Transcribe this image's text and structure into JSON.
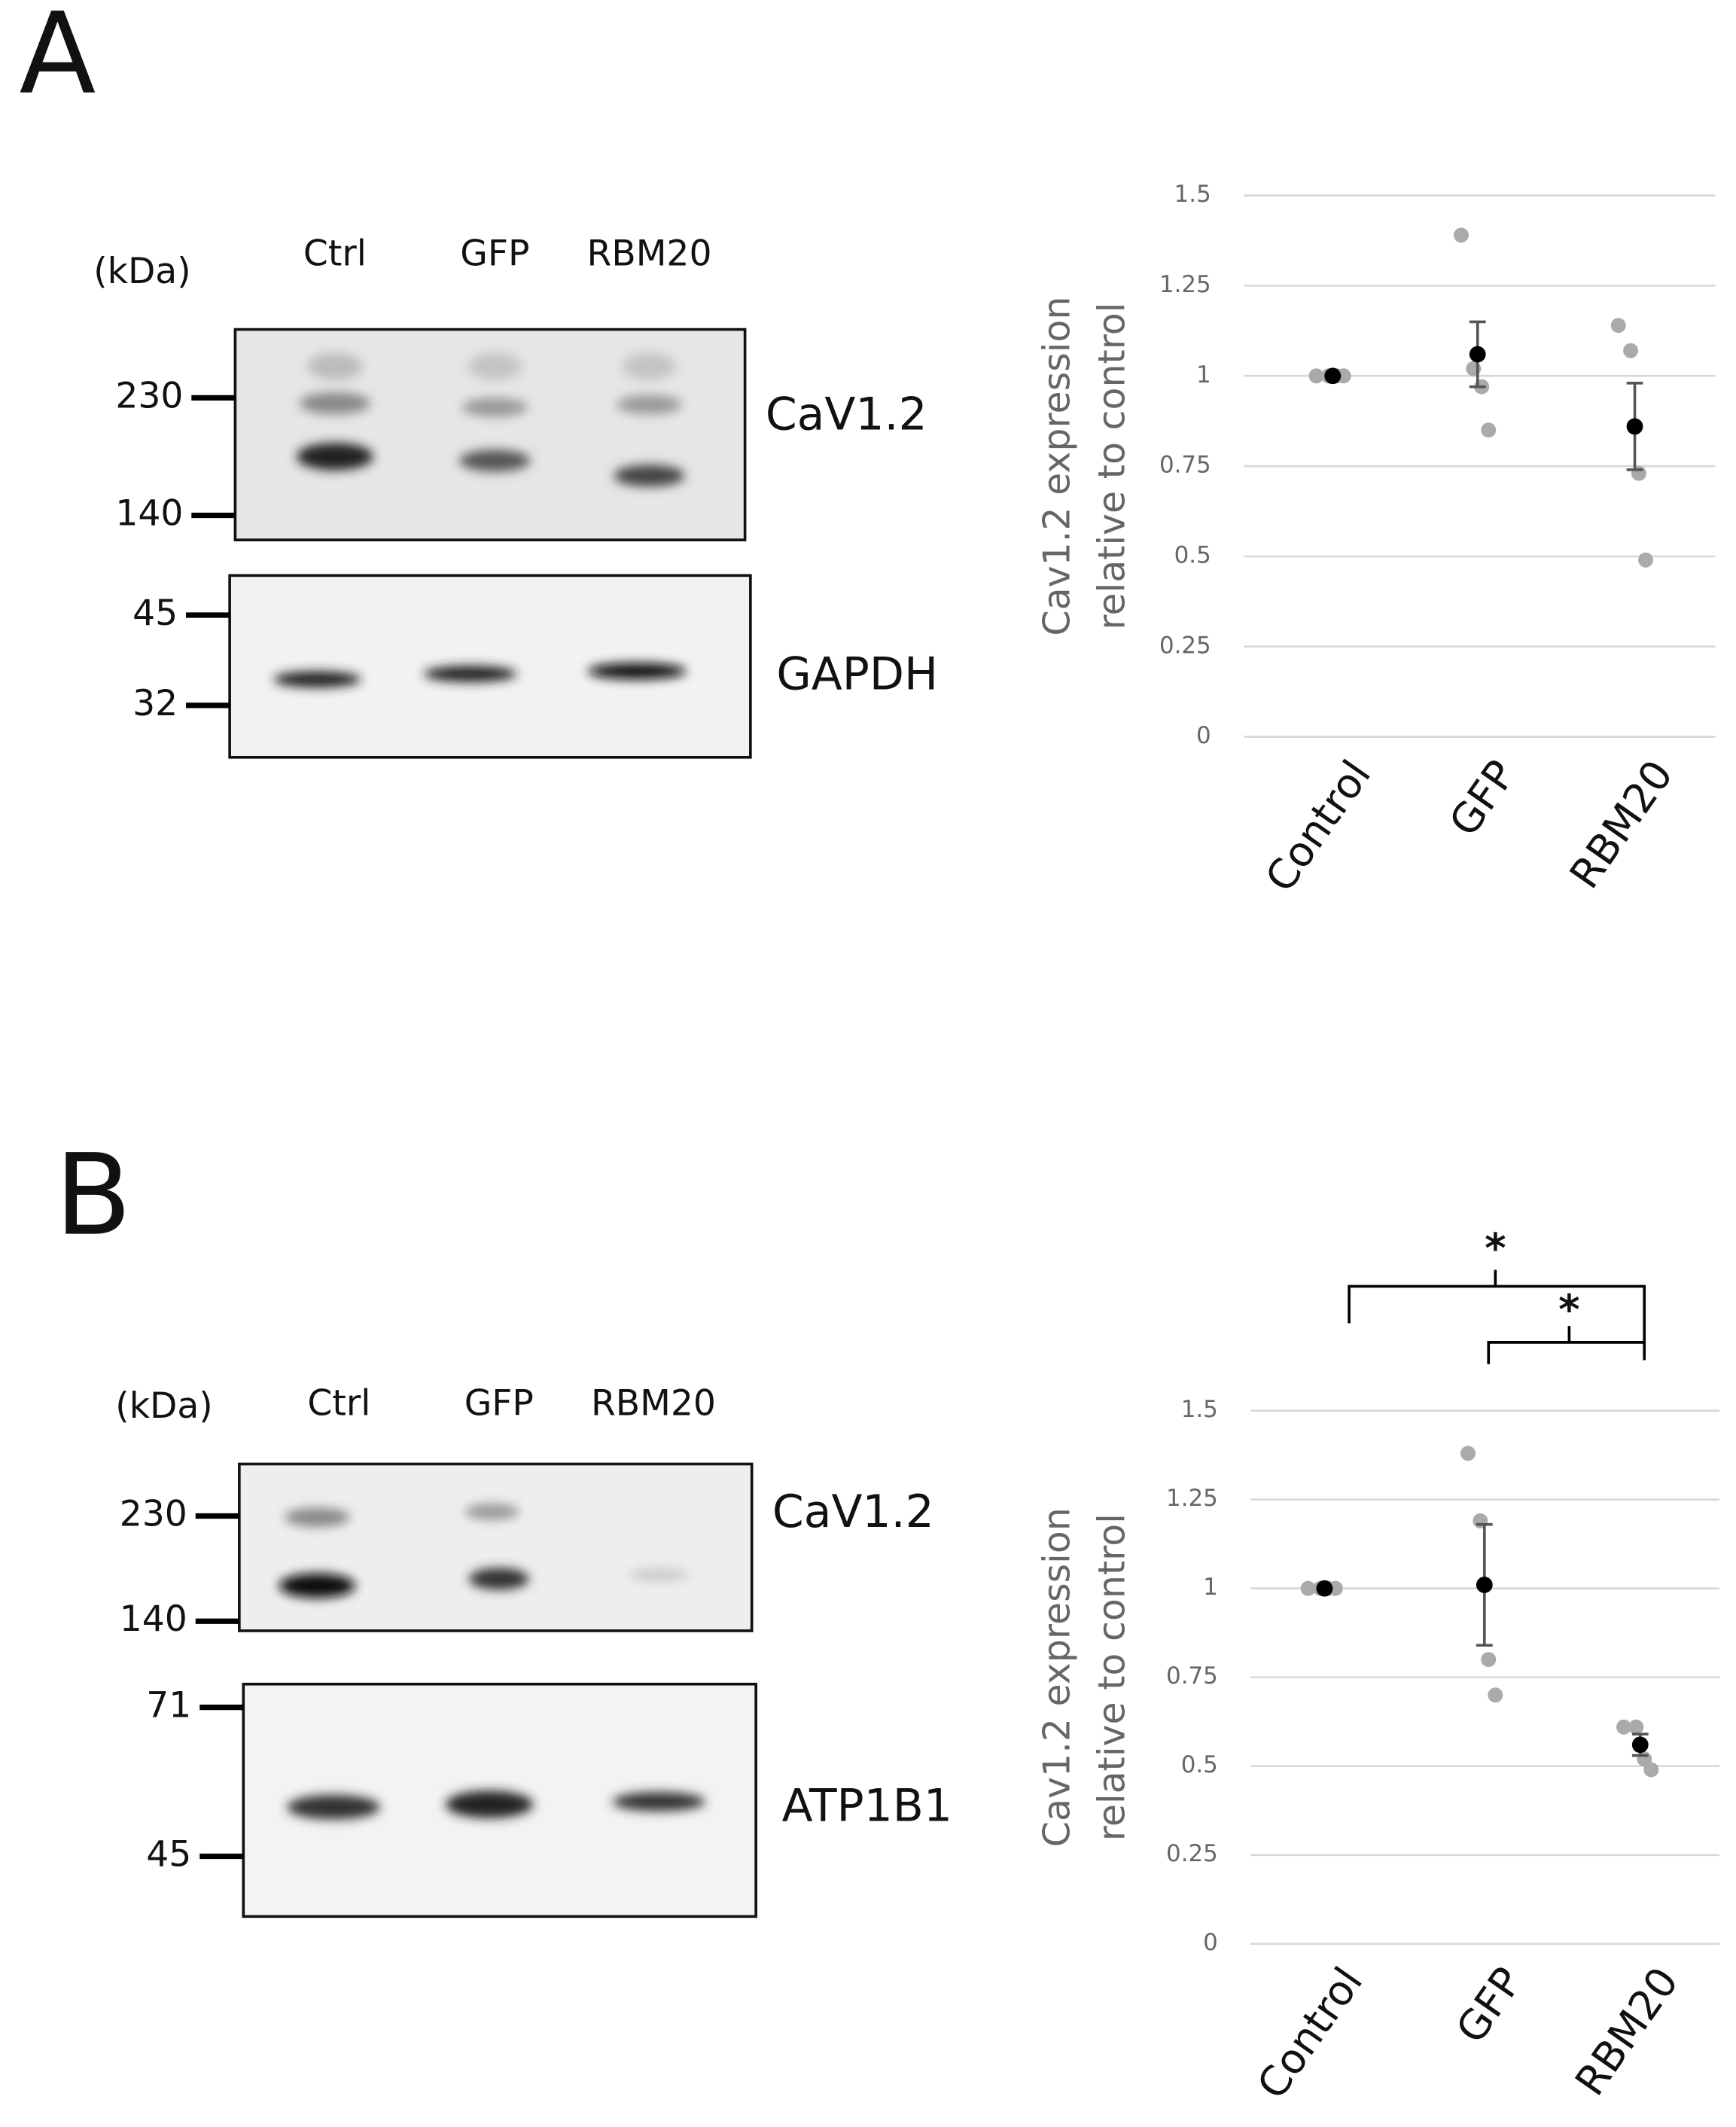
{
  "panels": [
    {
      "label": "A",
      "unit": "(kDa)",
      "lanes": [
        "Ctrl",
        "GFP",
        "RBM20"
      ],
      "blots": [
        {
          "name": "CaV1.2",
          "markers": [
            230,
            140
          ]
        },
        {
          "name": "GAPDH",
          "markers": [
            45,
            32
          ]
        }
      ]
    },
    {
      "label": "B",
      "unit": "(kDa)",
      "lanes": [
        "Ctrl",
        "GFP",
        "RBM20"
      ],
      "blots": [
        {
          "name": "CaV1.2",
          "markers": [
            230,
            140
          ]
        },
        {
          "name": "ATP1B1",
          "markers": [
            71,
            45
          ]
        }
      ]
    }
  ],
  "chart_data": [
    {
      "type": "dot",
      "ylabel": [
        "Cav1.2 expression",
        "relative to control"
      ],
      "categories": [
        "Control",
        "GFP",
        "RBM20"
      ],
      "ylim": [
        0,
        1.5
      ],
      "yticks": [
        0,
        0.25,
        0.5,
        0.75,
        1,
        1.25,
        1.5
      ],
      "grid": true,
      "series": [
        {
          "color": "#aaaaaa",
          "values": [
            [
              1,
              1,
              1,
              1
            ],
            [
              1.39,
              1.02,
              0.97,
              0.85
            ],
            [
              1.14,
              1.07,
              0.73,
              0.49
            ]
          ]
        },
        {
          "color": "#000000",
          "values": [
            1,
            1.06,
            0.86
          ],
          "errors": [
            0,
            0.09,
            0.12
          ]
        }
      ]
    },
    {
      "type": "dot",
      "ylabel": [
        "Cav1.2 expression",
        "relative to control"
      ],
      "categories": [
        "Control",
        "GFP",
        "RBM20"
      ],
      "ylim": [
        0,
        1.5
      ],
      "yticks": [
        0,
        0.25,
        0.5,
        0.75,
        1,
        1.25,
        1.5
      ],
      "grid": true,
      "series": [
        {
          "color": "#aaaaaa",
          "values": [
            [
              1,
              1,
              1,
              1
            ],
            [
              1.38,
              1.19,
              0.8,
              0.7
            ],
            [
              0.61,
              0.61,
              0.52,
              0.49
            ]
          ]
        },
        {
          "color": "#000000",
          "values": [
            1,
            1.01,
            0.56
          ],
          "errors": [
            0,
            0.17,
            0.03
          ]
        }
      ],
      "annotations": [
        "*",
        "*"
      ]
    }
  ]
}
